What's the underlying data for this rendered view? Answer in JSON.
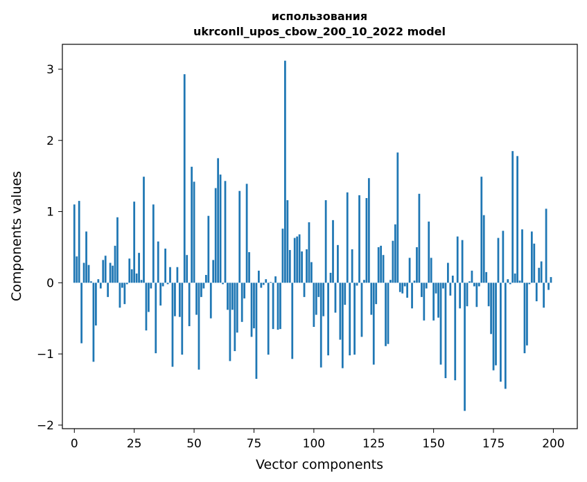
{
  "chart_data": {
    "type": "bar",
    "title_line1": "использования",
    "title_line2": "ukrconll_upos_cbow_200_10_2022 model",
    "xlabel": "Vector components",
    "ylabel": "Components values",
    "xlim": [
      -5,
      210
    ],
    "ylim": [
      -2.05,
      3.35
    ],
    "xticks": [
      0,
      25,
      50,
      75,
      100,
      125,
      150,
      175,
      200
    ],
    "yticks": [
      -2,
      -1,
      0,
      1,
      2,
      3
    ],
    "ytick_labels": [
      "−2",
      "−1",
      "0",
      "1",
      "2",
      "3"
    ],
    "xtick_labels": [
      "0",
      "25",
      "50",
      "75",
      "100",
      "125",
      "150",
      "175",
      "200"
    ],
    "grid": false,
    "bar_color": "#1f77b4",
    "values": [
      1.1,
      0.37,
      1.15,
      -0.85,
      0.28,
      0.72,
      0.25,
      0.02,
      -1.11,
      -0.6,
      0.05,
      -0.08,
      0.32,
      0.38,
      -0.2,
      0.28,
      0.24,
      0.52,
      0.92,
      -0.35,
      -0.07,
      -0.3,
      -0.02,
      0.34,
      0.19,
      1.14,
      0.13,
      0.42,
      0.04,
      1.49,
      -0.67,
      -0.41,
      -0.08,
      1.1,
      -0.99,
      0.58,
      -0.32,
      -0.05,
      0.48,
      -0.02,
      0.22,
      -1.18,
      -0.47,
      0.22,
      -0.48,
      -1.01,
      2.93,
      0.39,
      -0.61,
      1.63,
      1.42,
      -0.45,
      -1.22,
      -0.2,
      -0.08,
      0.11,
      0.94,
      -0.5,
      0.32,
      1.33,
      1.75,
      1.52,
      -0.02,
      1.43,
      -0.38,
      -1.1,
      -0.38,
      -0.96,
      -0.7,
      1.29,
      -0.55,
      -0.22,
      1.39,
      0.43,
      -0.76,
      -0.64,
      -1.35,
      0.17,
      -0.07,
      -0.03,
      0.05,
      -1.01,
      0.01,
      -0.65,
      0.09,
      -0.66,
      -0.65,
      0.76,
      3.12,
      1.16,
      0.46,
      -1.07,
      0.63,
      0.65,
      0.68,
      0.44,
      -0.2,
      0.47,
      0.85,
      0.29,
      -0.62,
      -0.45,
      -0.2,
      -1.19,
      -0.47,
      1.16,
      -1.02,
      0.14,
      0.88,
      -0.42,
      0.53,
      -0.8,
      -1.2,
      -0.31,
      1.27,
      -1.02,
      0.47,
      -1.01,
      -0.04,
      1.23,
      -0.76,
      0.04,
      1.19,
      1.47,
      -0.45,
      -1.15,
      -0.3,
      0.5,
      0.52,
      0.39,
      -0.89,
      -0.86,
      0.04,
      0.59,
      0.82,
      1.83,
      -0.13,
      -0.15,
      -0.05,
      -0.21,
      0.35,
      -0.36,
      0.03,
      0.5,
      1.25,
      -0.2,
      -0.53,
      -0.08,
      0.86,
      0.35,
      -0.53,
      -0.15,
      -0.49,
      -1.15,
      -0.08,
      -1.34,
      0.28,
      -0.18,
      0.1,
      -1.37,
      0.65,
      -0.36,
      0.6,
      -1.8,
      -0.33,
      0.02,
      0.17,
      -0.05,
      -0.34,
      -0.05,
      1.49,
      0.95,
      0.15,
      -0.33,
      -0.72,
      -1.23,
      -1.16,
      0.63,
      -1.39,
      0.73,
      -1.49,
      0.05,
      -0.02,
      1.85,
      0.13,
      1.78,
      0.03,
      0.75,
      -0.99,
      -0.88,
      -0.02,
      0.72,
      0.55,
      -0.26,
      0.21,
      0.3,
      -0.35,
      1.04,
      -0.1,
      0.08
    ]
  }
}
